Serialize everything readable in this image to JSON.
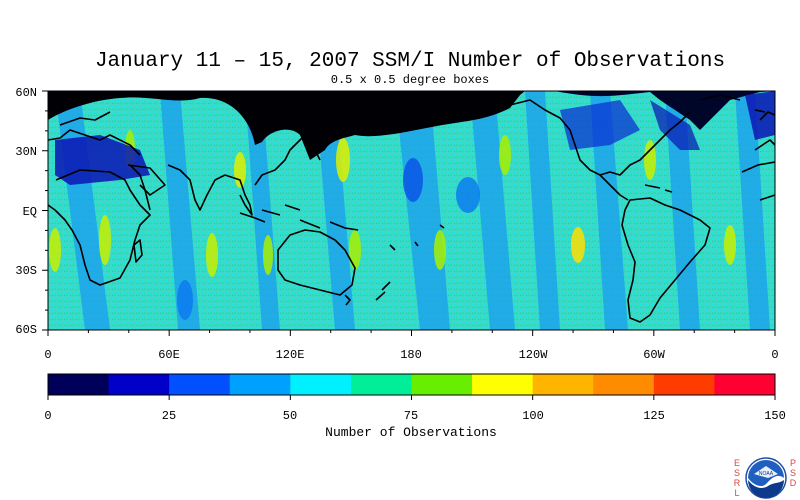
{
  "map": {
    "title": "January 11 – 15, 2007 SSM/I Number of Observations",
    "subtitle": "0.5 x 0.5 degree boxes",
    "lat_labels": [
      "60N",
      "30N",
      "EQ",
      "30S",
      "60S"
    ],
    "lon_labels": [
      "0",
      "60E",
      "120E",
      "180",
      "120W",
      "60W",
      "0"
    ]
  },
  "colorbar": {
    "title": "Number of Observations",
    "ticks": [
      "0",
      "25",
      "50",
      "75",
      "100",
      "125",
      "150"
    ],
    "colors": [
      "#00005a",
      "#0000c8",
      "#0050ff",
      "#00a0ff",
      "#00f0ff",
      "#00ee98",
      "#68ee00",
      "#ffff00",
      "#ffb400",
      "#ff8c00",
      "#ff3c00",
      "#ff0032"
    ]
  },
  "logo": {
    "left_letters": [
      "E",
      "S",
      "R",
      "L"
    ],
    "right_letters": [
      "P",
      "S",
      "D"
    ],
    "emblem_text": "NOAA"
  }
}
